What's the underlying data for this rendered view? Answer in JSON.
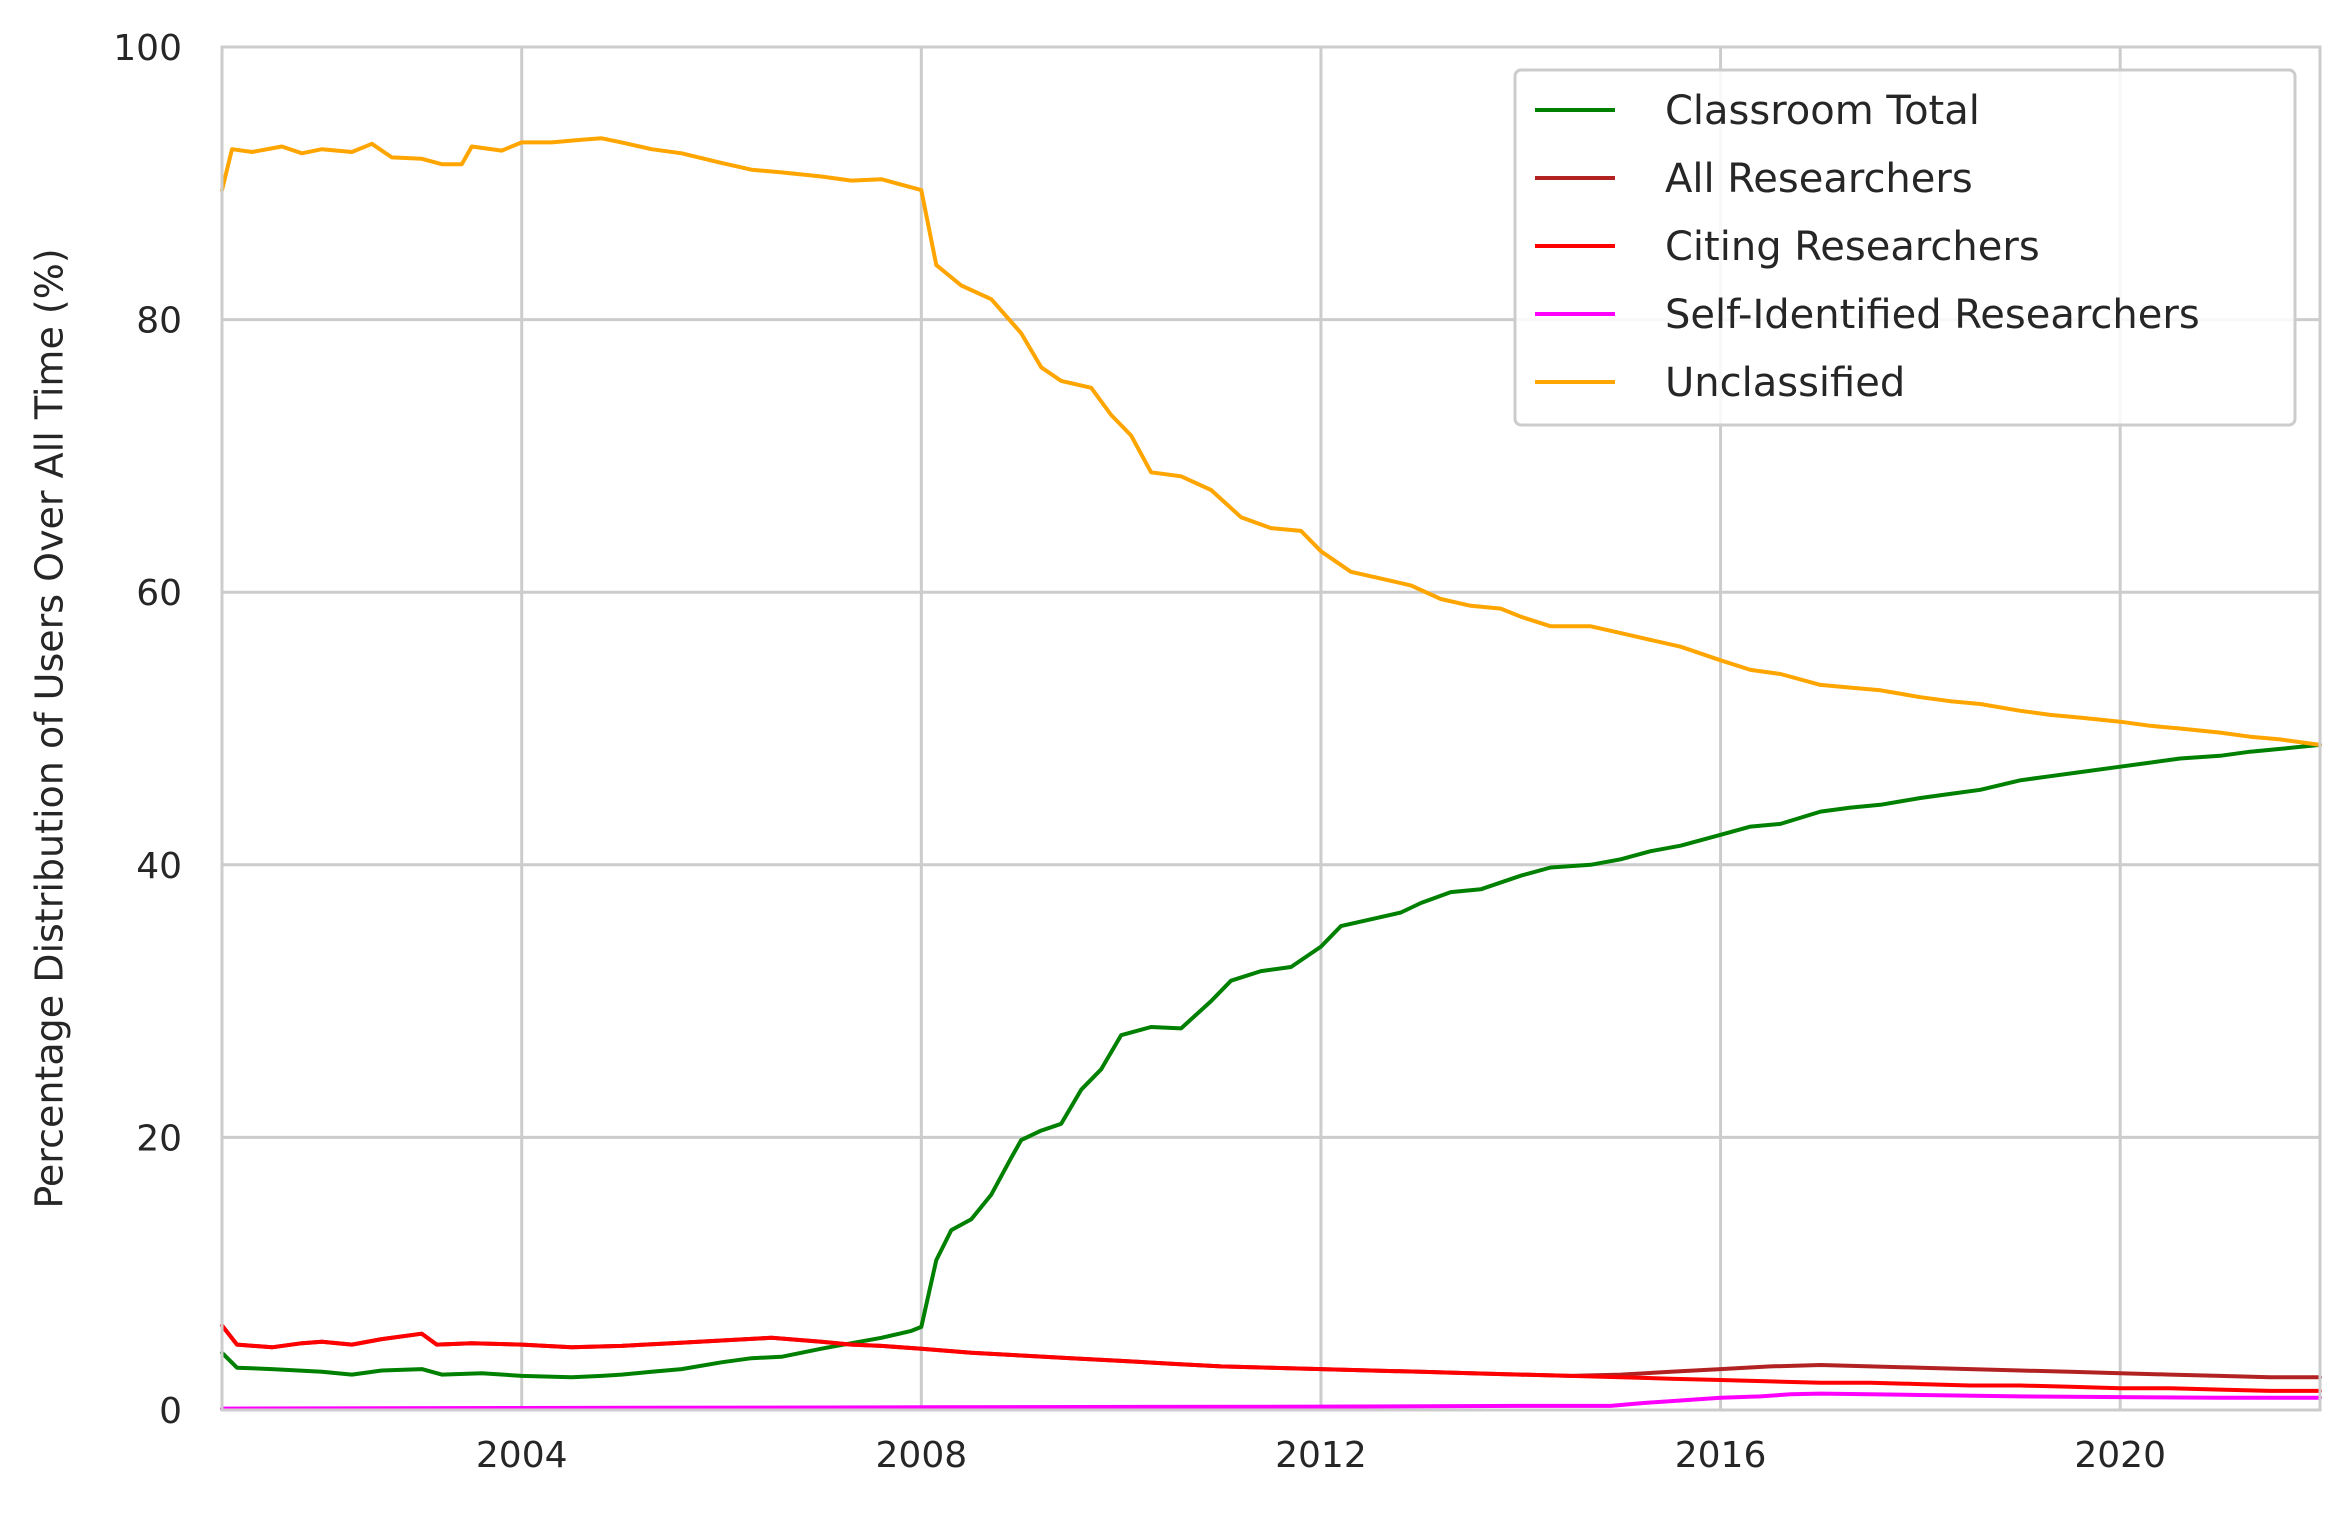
{
  "chart_data": {
    "type": "line",
    "title": "",
    "xlabel": "",
    "ylabel": "Percentage Distribution of Users Over All Time (%)",
    "xlim": [
      2001.0,
      2022.0
    ],
    "ylim": [
      0,
      100
    ],
    "xticks": [
      2004,
      2008,
      2012,
      2016,
      2020
    ],
    "yticks": [
      0,
      20,
      40,
      60,
      80,
      100
    ],
    "grid": true,
    "legend_position": "top-right",
    "series": [
      {
        "name": "Classroom Total",
        "color": "#008000",
        "points": [
          [
            2001.0,
            4.2
          ],
          [
            2001.15,
            3.1
          ],
          [
            2001.5,
            3.0
          ],
          [
            2002.0,
            2.8
          ],
          [
            2002.3,
            2.6
          ],
          [
            2002.6,
            2.9
          ],
          [
            2003.0,
            3.0
          ],
          [
            2003.2,
            2.6
          ],
          [
            2003.6,
            2.7
          ],
          [
            2004.0,
            2.5
          ],
          [
            2004.5,
            2.4
          ],
          [
            2004.8,
            2.5
          ],
          [
            2005.0,
            2.6
          ],
          [
            2005.3,
            2.8
          ],
          [
            2005.6,
            3.0
          ],
          [
            2006.0,
            3.5
          ],
          [
            2006.3,
            3.8
          ],
          [
            2006.6,
            3.9
          ],
          [
            2007.0,
            4.5
          ],
          [
            2007.3,
            4.9
          ],
          [
            2007.6,
            5.3
          ],
          [
            2007.9,
            5.8
          ],
          [
            2008.0,
            6.1
          ],
          [
            2008.15,
            11.0
          ],
          [
            2008.3,
            13.2
          ],
          [
            2008.5,
            14.0
          ],
          [
            2008.7,
            15.8
          ],
          [
            2008.9,
            18.5
          ],
          [
            2009.0,
            19.8
          ],
          [
            2009.2,
            20.5
          ],
          [
            2009.4,
            21.0
          ],
          [
            2009.6,
            23.5
          ],
          [
            2009.8,
            25.0
          ],
          [
            2010.0,
            27.5
          ],
          [
            2010.3,
            28.1
          ],
          [
            2010.6,
            28.0
          ],
          [
            2010.9,
            30.0
          ],
          [
            2011.1,
            31.5
          ],
          [
            2011.4,
            32.2
          ],
          [
            2011.7,
            32.5
          ],
          [
            2012.0,
            34.0
          ],
          [
            2012.2,
            35.5
          ],
          [
            2012.5,
            36.0
          ],
          [
            2012.8,
            36.5
          ],
          [
            2013.0,
            37.2
          ],
          [
            2013.3,
            38.0
          ],
          [
            2013.6,
            38.2
          ],
          [
            2014.0,
            39.2
          ],
          [
            2014.3,
            39.8
          ],
          [
            2014.7,
            40.0
          ],
          [
            2015.0,
            40.4
          ],
          [
            2015.3,
            41.0
          ],
          [
            2015.6,
            41.4
          ],
          [
            2016.0,
            42.2
          ],
          [
            2016.3,
            42.8
          ],
          [
            2016.6,
            43.0
          ],
          [
            2017.0,
            43.9
          ],
          [
            2017.3,
            44.2
          ],
          [
            2017.6,
            44.4
          ],
          [
            2018.0,
            44.9
          ],
          [
            2018.3,
            45.2
          ],
          [
            2018.6,
            45.5
          ],
          [
            2019.0,
            46.2
          ],
          [
            2019.3,
            46.5
          ],
          [
            2019.6,
            46.8
          ],
          [
            2020.0,
            47.2
          ],
          [
            2020.3,
            47.5
          ],
          [
            2020.6,
            47.8
          ],
          [
            2021.0,
            48.0
          ],
          [
            2021.3,
            48.3
          ],
          [
            2021.6,
            48.5
          ],
          [
            2022.0,
            48.8
          ]
        ]
      },
      {
        "name": "All Researchers",
        "color": "#b22222",
        "points": [
          [
            2001.0,
            6.2
          ],
          [
            2001.15,
            4.8
          ],
          [
            2001.5,
            4.6
          ],
          [
            2001.8,
            4.9
          ],
          [
            2002.0,
            5.0
          ],
          [
            2002.3,
            4.8
          ],
          [
            2002.6,
            5.2
          ],
          [
            2003.0,
            5.6
          ],
          [
            2003.15,
            4.8
          ],
          [
            2003.5,
            4.9
          ],
          [
            2004.0,
            4.8
          ],
          [
            2004.5,
            4.6
          ],
          [
            2005.0,
            4.7
          ],
          [
            2005.5,
            4.9
          ],
          [
            2006.0,
            5.1
          ],
          [
            2006.5,
            5.3
          ],
          [
            2007.0,
            5.0
          ],
          [
            2007.3,
            4.8
          ],
          [
            2007.6,
            4.7
          ],
          [
            2008.0,
            4.5
          ],
          [
            2008.5,
            4.2
          ],
          [
            2009.0,
            4.0
          ],
          [
            2009.5,
            3.8
          ],
          [
            2010.0,
            3.6
          ],
          [
            2010.5,
            3.4
          ],
          [
            2011.0,
            3.2
          ],
          [
            2011.5,
            3.1
          ],
          [
            2012.0,
            3.0
          ],
          [
            2012.5,
            2.9
          ],
          [
            2013.0,
            2.8
          ],
          [
            2013.5,
            2.7
          ],
          [
            2014.0,
            2.6
          ],
          [
            2014.5,
            2.5
          ],
          [
            2015.0,
            2.6
          ],
          [
            2015.5,
            2.8
          ],
          [
            2016.0,
            3.0
          ],
          [
            2016.5,
            3.2
          ],
          [
            2017.0,
            3.3
          ],
          [
            2017.5,
            3.2
          ],
          [
            2018.0,
            3.1
          ],
          [
            2018.5,
            3.0
          ],
          [
            2019.0,
            2.9
          ],
          [
            2019.5,
            2.8
          ],
          [
            2020.0,
            2.7
          ],
          [
            2020.5,
            2.6
          ],
          [
            2021.0,
            2.5
          ],
          [
            2021.5,
            2.4
          ],
          [
            2022.0,
            2.4
          ]
        ]
      },
      {
        "name": "Citing Researchers",
        "color": "#ff0000",
        "points": [
          [
            2001.0,
            6.2
          ],
          [
            2001.15,
            4.8
          ],
          [
            2001.5,
            4.6
          ],
          [
            2001.8,
            4.9
          ],
          [
            2002.0,
            5.0
          ],
          [
            2002.3,
            4.8
          ],
          [
            2002.6,
            5.2
          ],
          [
            2003.0,
            5.6
          ],
          [
            2003.15,
            4.8
          ],
          [
            2003.5,
            4.9
          ],
          [
            2004.0,
            4.8
          ],
          [
            2004.5,
            4.6
          ],
          [
            2005.0,
            4.7
          ],
          [
            2005.5,
            4.9
          ],
          [
            2006.0,
            5.1
          ],
          [
            2006.5,
            5.3
          ],
          [
            2007.0,
            5.0
          ],
          [
            2007.3,
            4.8
          ],
          [
            2007.6,
            4.7
          ],
          [
            2008.0,
            4.5
          ],
          [
            2008.5,
            4.2
          ],
          [
            2009.0,
            4.0
          ],
          [
            2009.5,
            3.8
          ],
          [
            2010.0,
            3.6
          ],
          [
            2010.5,
            3.4
          ],
          [
            2011.0,
            3.2
          ],
          [
            2011.5,
            3.1
          ],
          [
            2012.0,
            3.0
          ],
          [
            2012.5,
            2.9
          ],
          [
            2013.0,
            2.8
          ],
          [
            2013.5,
            2.7
          ],
          [
            2014.0,
            2.6
          ],
          [
            2014.5,
            2.5
          ],
          [
            2015.0,
            2.4
          ],
          [
            2015.5,
            2.3
          ],
          [
            2016.0,
            2.2
          ],
          [
            2016.5,
            2.1
          ],
          [
            2017.0,
            2.0
          ],
          [
            2017.5,
            2.0
          ],
          [
            2018.0,
            1.9
          ],
          [
            2018.5,
            1.8
          ],
          [
            2019.0,
            1.8
          ],
          [
            2019.5,
            1.7
          ],
          [
            2020.0,
            1.6
          ],
          [
            2020.5,
            1.6
          ],
          [
            2021.0,
            1.5
          ],
          [
            2021.5,
            1.4
          ],
          [
            2022.0,
            1.4
          ]
        ]
      },
      {
        "name": "Self-Identified Researchers",
        "color": "#ff00ff",
        "points": [
          [
            2001.0,
            0.1
          ],
          [
            2004.0,
            0.15
          ],
          [
            2008.0,
            0.2
          ],
          [
            2012.0,
            0.25
          ],
          [
            2014.0,
            0.3
          ],
          [
            2014.9,
            0.3
          ],
          [
            2015.2,
            0.5
          ],
          [
            2015.6,
            0.7
          ],
          [
            2016.0,
            0.9
          ],
          [
            2016.4,
            1.0
          ],
          [
            2016.7,
            1.15
          ],
          [
            2017.0,
            1.2
          ],
          [
            2017.5,
            1.15
          ],
          [
            2018.0,
            1.1
          ],
          [
            2019.0,
            1.0
          ],
          [
            2020.0,
            0.95
          ],
          [
            2021.0,
            0.9
          ],
          [
            2022.0,
            0.9
          ]
        ]
      },
      {
        "name": "Unclassified",
        "color": "#ffa500",
        "points": [
          [
            2001.0,
            89.5
          ],
          [
            2001.1,
            92.5
          ],
          [
            2001.3,
            92.3
          ],
          [
            2001.6,
            92.7
          ],
          [
            2001.8,
            92.2
          ],
          [
            2002.0,
            92.5
          ],
          [
            2002.3,
            92.3
          ],
          [
            2002.5,
            92.9
          ],
          [
            2002.7,
            91.9
          ],
          [
            2003.0,
            91.8
          ],
          [
            2003.2,
            91.4
          ],
          [
            2003.4,
            91.4
          ],
          [
            2003.5,
            92.7
          ],
          [
            2003.8,
            92.4
          ],
          [
            2004.0,
            93.0
          ],
          [
            2004.3,
            93.0
          ],
          [
            2004.6,
            93.2
          ],
          [
            2004.8,
            93.3
          ],
          [
            2005.0,
            93.0
          ],
          [
            2005.3,
            92.5
          ],
          [
            2005.6,
            92.2
          ],
          [
            2006.0,
            91.5
          ],
          [
            2006.3,
            91.0
          ],
          [
            2006.6,
            90.8
          ],
          [
            2007.0,
            90.5
          ],
          [
            2007.3,
            90.2
          ],
          [
            2007.6,
            90.3
          ],
          [
            2008.0,
            89.5
          ],
          [
            2008.15,
            84.0
          ],
          [
            2008.4,
            82.5
          ],
          [
            2008.7,
            81.5
          ],
          [
            2009.0,
            79.0
          ],
          [
            2009.2,
            76.5
          ],
          [
            2009.4,
            75.5
          ],
          [
            2009.7,
            75.0
          ],
          [
            2009.9,
            73.0
          ],
          [
            2010.1,
            71.5
          ],
          [
            2010.3,
            68.8
          ],
          [
            2010.6,
            68.5
          ],
          [
            2010.9,
            67.5
          ],
          [
            2011.2,
            65.5
          ],
          [
            2011.5,
            64.7
          ],
          [
            2011.8,
            64.5
          ],
          [
            2012.0,
            63.0
          ],
          [
            2012.3,
            61.5
          ],
          [
            2012.6,
            61.0
          ],
          [
            2012.9,
            60.5
          ],
          [
            2013.2,
            59.5
          ],
          [
            2013.5,
            59.0
          ],
          [
            2013.8,
            58.8
          ],
          [
            2014.0,
            58.2
          ],
          [
            2014.3,
            57.5
          ],
          [
            2014.7,
            57.5
          ],
          [
            2015.0,
            57.0
          ],
          [
            2015.3,
            56.5
          ],
          [
            2015.6,
            56.0
          ],
          [
            2016.0,
            55.0
          ],
          [
            2016.3,
            54.3
          ],
          [
            2016.6,
            54.0
          ],
          [
            2017.0,
            53.2
          ],
          [
            2017.3,
            53.0
          ],
          [
            2017.6,
            52.8
          ],
          [
            2018.0,
            52.3
          ],
          [
            2018.3,
            52.0
          ],
          [
            2018.6,
            51.8
          ],
          [
            2019.0,
            51.3
          ],
          [
            2019.3,
            51.0
          ],
          [
            2019.6,
            50.8
          ],
          [
            2020.0,
            50.5
          ],
          [
            2020.3,
            50.2
          ],
          [
            2020.6,
            50.0
          ],
          [
            2021.0,
            49.7
          ],
          [
            2021.3,
            49.4
          ],
          [
            2021.6,
            49.2
          ],
          [
            2022.0,
            48.8
          ]
        ]
      }
    ]
  }
}
